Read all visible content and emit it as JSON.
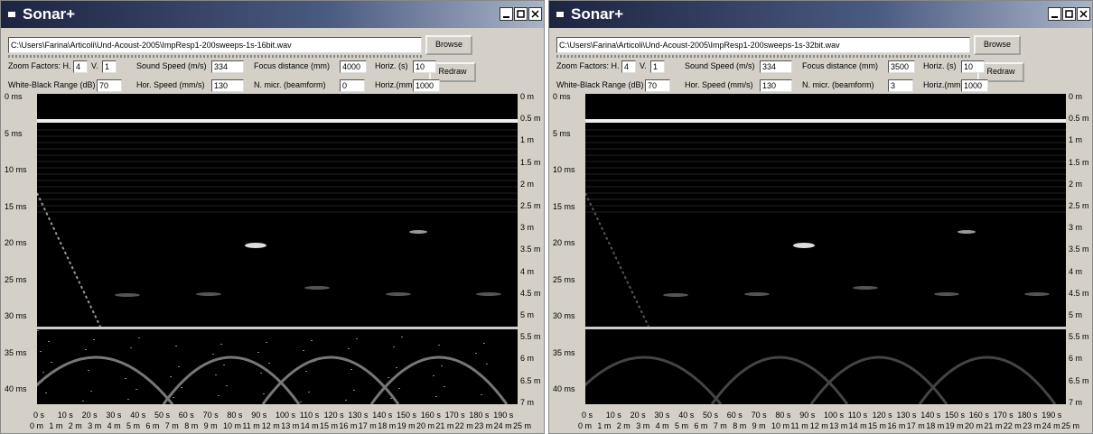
{
  "windows": [
    {
      "title": "Sonar+",
      "file_path": "C:\\Users\\Farina\\Articoli\\Und-Acoust-2005\\ImpResp1-200sweeps-1s-16bit.wav",
      "buttons": {
        "browse": "Browse",
        "redraw": "Redraw"
      },
      "params": [
        {
          "label": "Zoom Factors: H.",
          "value": "4"
        },
        {
          "label": "V.",
          "value": "1"
        },
        {
          "label": "Sound Speed (m/s)",
          "value": "334"
        },
        {
          "label": "Focus distance (mm)",
          "value": "4000"
        },
        {
          "label": "Horiz. (s)",
          "value": "10"
        },
        {
          "label": "White-Black Range (dB)",
          "value": "70"
        },
        {
          "label": "Hor. Speed (mm/s)",
          "value": "130"
        },
        {
          "label": "N. micr. (beamform)",
          "value": "0"
        },
        {
          "label": "Horiz.(mm)",
          "value": "1000"
        }
      ],
      "time_labels": [
        "0 ms",
        "5 ms",
        "10 ms",
        "15 ms",
        "20 ms",
        "25 ms",
        "30 ms",
        "35 ms",
        "40 ms"
      ],
      "depth_labels": [
        "0 m",
        "0.5 m",
        "1 m",
        "1.5 m",
        "2 m",
        "2.5 m",
        "3 m",
        "3.5 m",
        "4 m",
        "4.5 m",
        "5 m",
        "5.5 m",
        "6 m",
        "6.5 m",
        "7 m"
      ],
      "bottom_time_labels": [
        "0 s",
        "10 s",
        "20 s",
        "30 s",
        "40 s",
        "50 s",
        "60 s",
        "70 s",
        "80 s",
        "90 s",
        "100 s",
        "110 s",
        "120 s",
        "130 s",
        "140 s",
        "150 s",
        "160 s",
        "170 s",
        "180 s",
        "190 s"
      ],
      "bottom_distance_labels": [
        "0 m",
        "1 m",
        "2 m",
        "3 m",
        "4 m",
        "5 m",
        "6 m",
        "7 m",
        "8 m",
        "9 m",
        "10 m",
        "11 m",
        "12 m",
        "13 m",
        "14 m",
        "15 m",
        "16 m",
        "17 m",
        "18 m",
        "19 m",
        "20 m",
        "21 m",
        "22 m",
        "23 m",
        "24 m",
        "25 m"
      ]
    },
    {
      "title": "Sonar+",
      "file_path": "C:\\Users\\Farina\\Articoli\\Und-Acoust-2005\\ImpResp1-200sweeps-1s-32bit.wav",
      "buttons": {
        "browse": "Browse",
        "redraw": "Redraw"
      },
      "params": [
        {
          "label": "Zoom Factors: H.",
          "value": "4"
        },
        {
          "label": "V.",
          "value": "1"
        },
        {
          "label": "Sound Speed (m/s)",
          "value": "334"
        },
        {
          "label": "Focus distance (mm)",
          "value": "3500"
        },
        {
          "label": "Horiz. (s)",
          "value": "10"
        },
        {
          "label": "White-Black Range (dB)",
          "value": "70"
        },
        {
          "label": "Hor. Speed (mm/s)",
          "value": "130"
        },
        {
          "label": "N. micr. (beamform)",
          "value": "3"
        },
        {
          "label": "Horiz.(mm)",
          "value": "1000"
        }
      ],
      "time_labels": [
        "0 ms",
        "5 ms",
        "10 ms",
        "15 ms",
        "20 ms",
        "25 ms",
        "30 ms",
        "35 ms",
        "40 ms"
      ],
      "depth_labels": [
        "0 m",
        "0.5 m",
        "1 m",
        "1.5 m",
        "2 m",
        "2.5 m",
        "3 m",
        "3.5 m",
        "4 m",
        "4.5 m",
        "5 m",
        "5.5 m",
        "6 m",
        "6.5 m",
        "7 m"
      ],
      "bottom_time_labels": [
        "0 s",
        "10 s",
        "20 s",
        "30 s",
        "40 s",
        "50 s",
        "60 s",
        "70 s",
        "80 s",
        "90 s",
        "100 s",
        "110 s",
        "120 s",
        "130 s",
        "140 s",
        "150 s",
        "160 s",
        "170 s",
        "180 s",
        "190 s"
      ],
      "bottom_distance_labels": [
        "0 m",
        "1 m",
        "2 m",
        "3 m",
        "4 m",
        "5 m",
        "6 m",
        "7 m",
        "8 m",
        "9 m",
        "10 m",
        "11 m",
        "12 m",
        "13 m",
        "14 m",
        "15 m",
        "16 m",
        "17 m",
        "18 m",
        "19 m",
        "20 m",
        "21 m",
        "22 m",
        "23 m",
        "24 m",
        "25 m"
      ]
    }
  ]
}
